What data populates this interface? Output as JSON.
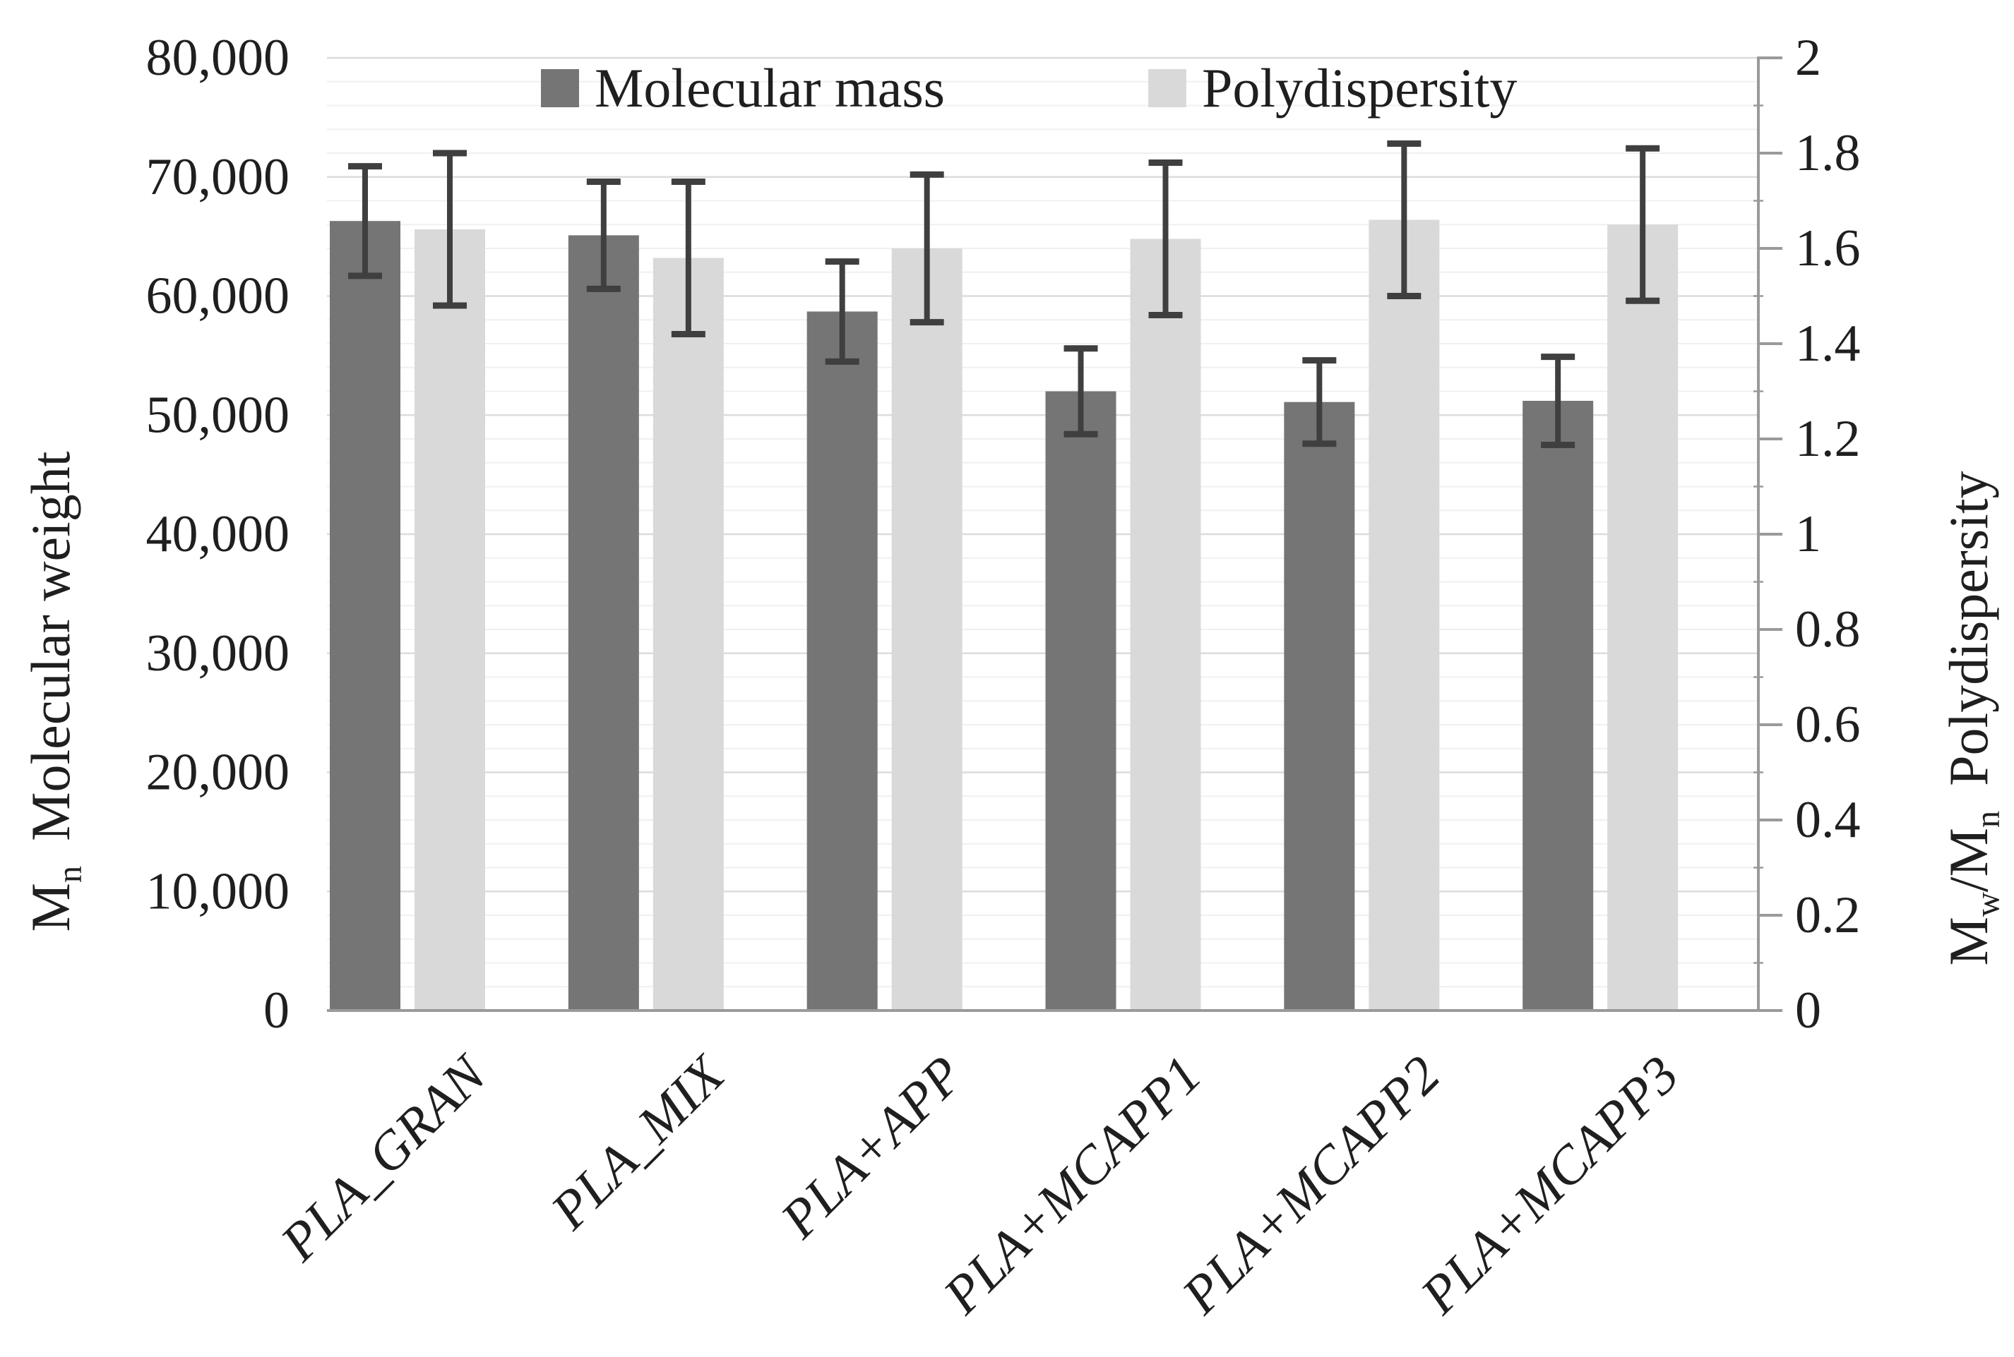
{
  "chart_data": {
    "type": "bar",
    "title": "",
    "categories": [
      "PLA_GRAN",
      "PLA_MIX",
      "PLA+APP",
      "PLA+MCAPP1",
      "PLA+MCAPP2",
      "PLA+MCAPP3"
    ],
    "series": [
      {
        "name": "Molecular mass",
        "axis": "left",
        "color": "#757575",
        "values": [
          66300,
          65100,
          58700,
          52000,
          51100,
          51200
        ],
        "errors": [
          4600,
          4500,
          4200,
          3600,
          3500,
          3700
        ]
      },
      {
        "name": "Polydispersity",
        "axis": "right",
        "color": "#d9d9d9",
        "values": [
          1.64,
          1.58,
          1.6,
          1.62,
          1.66,
          1.65
        ],
        "errors": [
          0.16,
          0.16,
          0.155,
          0.16,
          0.16,
          0.16
        ]
      }
    ],
    "left_axis": {
      "title_symbol": "M",
      "title_symbol_sub": "n",
      "title_text": "Molecular weight",
      "min": 0,
      "max": 80000,
      "major_step": 10000,
      "minor_step": 2000,
      "ticks": [
        "0",
        "10,000",
        "20,000",
        "30,000",
        "40,000",
        "50,000",
        "60,000",
        "70,000",
        "80,000"
      ]
    },
    "right_axis": {
      "title_symbol": "M",
      "title_symbol_sub": "w",
      "title_symbol2": "/M",
      "title_symbol2_sub": "n",
      "title_text": "Polydispersity",
      "min": 0,
      "max": 2,
      "major_step": 0.2,
      "minor_step": 0.1,
      "ticks": [
        "0",
        "0.2",
        "0.4",
        "0.6",
        "0.8",
        "1",
        "1.2",
        "1.4",
        "1.6",
        "1.8",
        "2"
      ]
    },
    "legend_position": "top-center",
    "grid": "horizontal major+minor",
    "colors": {
      "error_bar": "#3f3f3f",
      "axis_line": "#9a9a9a",
      "gridline_major": "#dcdcdc",
      "gridline_minor": "#f0f0f0",
      "text": "#1f1f1f",
      "background": "#ffffff"
    }
  }
}
